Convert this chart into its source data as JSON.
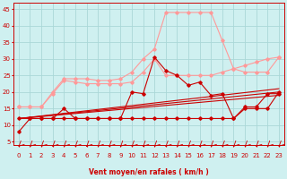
{
  "background_color": "#cff0f0",
  "grid_color": "#aad8d8",
  "xlabel": "Vent moyen/en rafales ( km/h )",
  "xlabel_color": "#cc0000",
  "tick_color": "#cc0000",
  "x_ticks": [
    0,
    1,
    2,
    3,
    4,
    5,
    6,
    7,
    8,
    9,
    10,
    11,
    12,
    13,
    14,
    15,
    16,
    17,
    18,
    19,
    20,
    21,
    22,
    23
  ],
  "ylim": [
    4,
    47
  ],
  "xlim": [
    -0.5,
    23.5
  ],
  "yticks": [
    5,
    10,
    15,
    20,
    25,
    30,
    35,
    40,
    45
  ],
  "lines": [
    {
      "color": "#ff9999",
      "linewidth": 0.8,
      "marker": "D",
      "markersize": 1.8,
      "data_x": [
        0,
        1,
        2,
        3,
        4,
        5,
        6,
        7,
        8,
        9,
        10,
        11,
        12,
        13,
        14,
        15,
        16,
        17,
        18,
        19,
        20,
        21,
        22,
        23
      ],
      "data_y": [
        15.5,
        15.5,
        15.5,
        19.5,
        23.5,
        23,
        22.5,
        22.5,
        22.5,
        22.5,
        23,
        26,
        30,
        25,
        25,
        25,
        25,
        25,
        26,
        27,
        28,
        29,
        30,
        30.5
      ]
    },
    {
      "color": "#ff9999",
      "linewidth": 0.8,
      "marker": "D",
      "markersize": 1.8,
      "data_x": [
        0,
        1,
        2,
        3,
        4,
        5,
        6,
        7,
        8,
        9,
        10,
        11,
        12,
        13,
        14,
        15,
        16,
        17,
        18,
        19,
        20,
        21,
        22,
        23
      ],
      "data_y": [
        15.5,
        15.5,
        15.5,
        20,
        24,
        24,
        24,
        23.5,
        23.5,
        24,
        26,
        30,
        33,
        44,
        44,
        44,
        44,
        44,
        35.5,
        27,
        26,
        26,
        26,
        30.5
      ]
    },
    {
      "color": "#cc0000",
      "linewidth": 0.8,
      "marker": "D",
      "markersize": 1.8,
      "data_x": [
        0,
        1,
        2,
        3,
        4,
        5,
        6,
        7,
        8,
        9,
        10,
        11,
        12,
        13,
        14,
        15,
        16,
        17,
        18,
        19,
        20,
        21,
        22,
        23
      ],
      "data_y": [
        8,
        12,
        12,
        12,
        15,
        12,
        12,
        12,
        12,
        12,
        20,
        19.5,
        30.5,
        26.5,
        25,
        22,
        23,
        19,
        19.5,
        12,
        15.5,
        15.5,
        19.5,
        19.5
      ]
    },
    {
      "color": "#cc0000",
      "linewidth": 0.8,
      "marker": "D",
      "markersize": 1.8,
      "data_x": [
        0,
        1,
        2,
        3,
        4,
        5,
        6,
        7,
        8,
        9,
        10,
        11,
        12,
        13,
        14,
        15,
        16,
        17,
        18,
        19,
        20,
        21,
        22,
        23
      ],
      "data_y": [
        12,
        12,
        12,
        12,
        12,
        12,
        12,
        12,
        12,
        12,
        12,
        12,
        12,
        12,
        12,
        12,
        12,
        12,
        12,
        12,
        15,
        15,
        15,
        20
      ]
    },
    {
      "color": "#cc0000",
      "linewidth": 0.8,
      "marker": null,
      "markersize": 0,
      "data_x": [
        0,
        23
      ],
      "data_y": [
        12,
        19
      ]
    },
    {
      "color": "#cc0000",
      "linewidth": 0.8,
      "marker": null,
      "markersize": 0,
      "data_x": [
        0,
        23
      ],
      "data_y": [
        12,
        20
      ]
    },
    {
      "color": "#cc0000",
      "linewidth": 0.8,
      "marker": null,
      "markersize": 0,
      "data_x": [
        0,
        23
      ],
      "data_y": [
        12,
        21
      ]
    }
  ],
  "arrow_color": "#cc0000",
  "label_fontsize": 5.5,
  "tick_fontsize": 5.0
}
